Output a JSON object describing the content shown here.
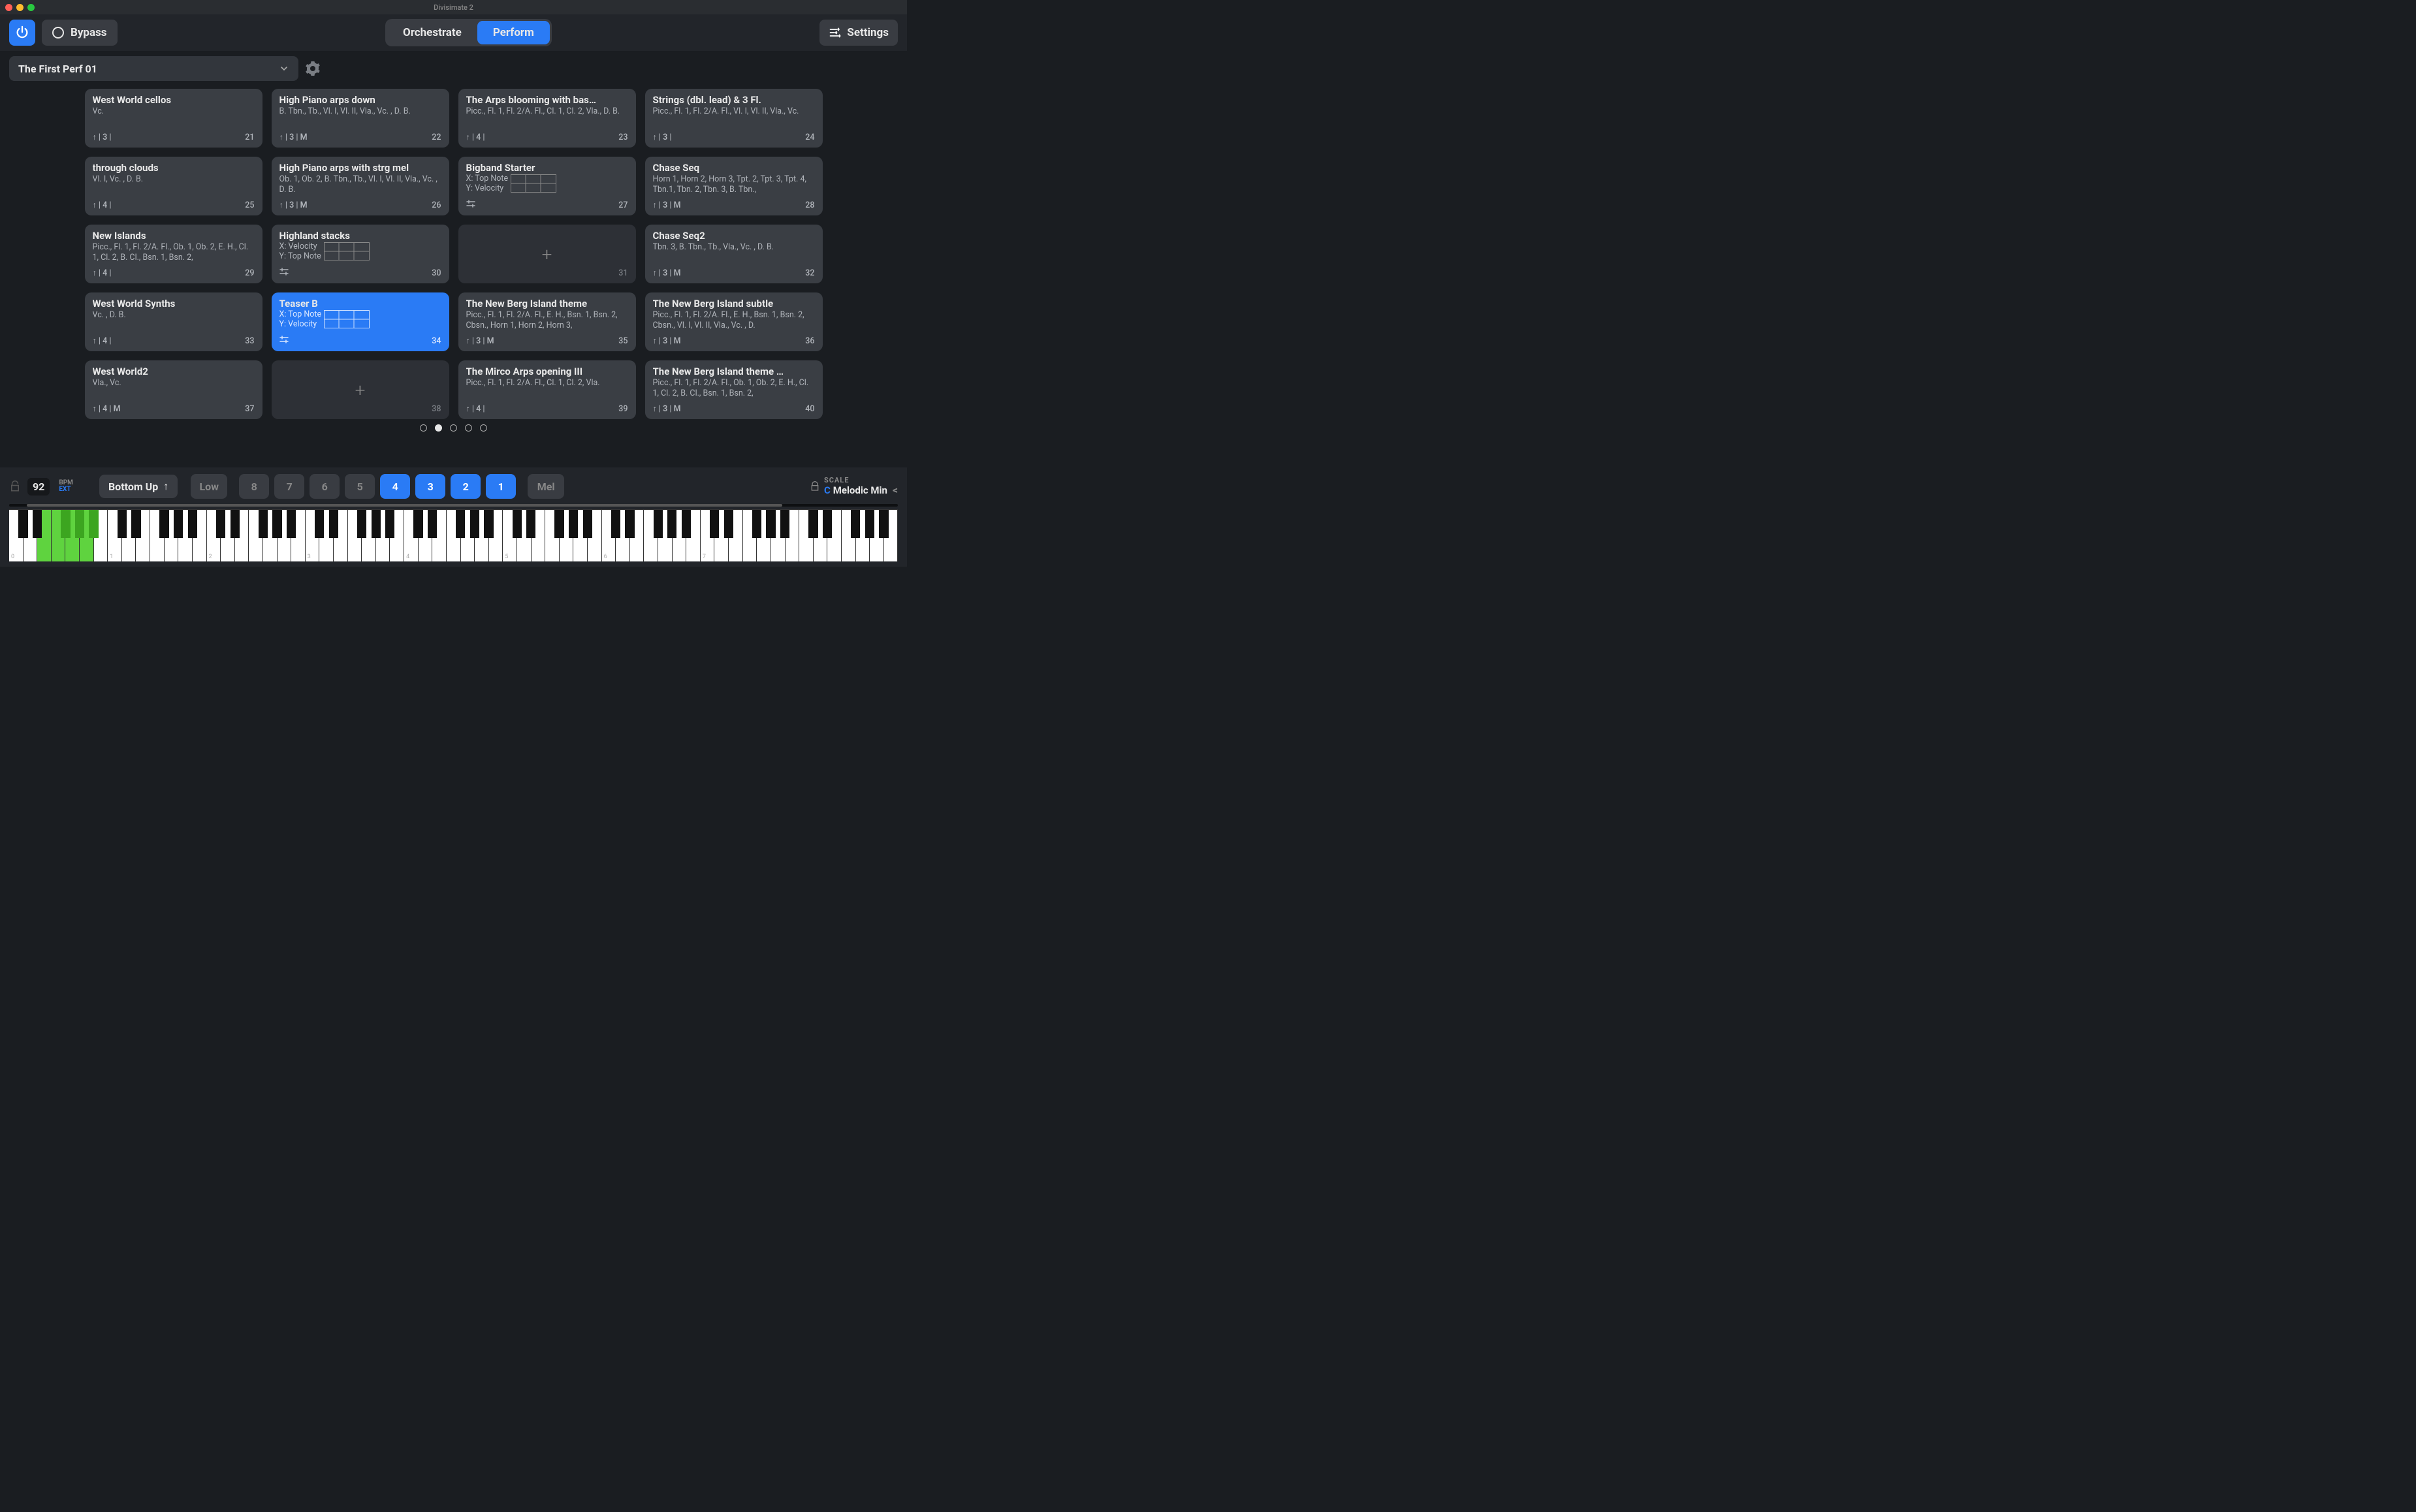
{
  "window": {
    "title": "Divisimate 2"
  },
  "toolbar": {
    "bypass_label": "Bypass",
    "mode_orchestrate": "Orchestrate",
    "mode_perform": "Perform",
    "settings_label": "Settings"
  },
  "preset": {
    "name": "The First Perf 01"
  },
  "cards": [
    {
      "title": "West World cellos",
      "sub": "Vc.",
      "info": "↑ | 3 |",
      "num": "21"
    },
    {
      "title": "High Piano arps down",
      "sub": "B. Tbn., Tb., Vl. I, Vl. II, Vla., Vc. , D. B.",
      "info": "↑ | 3 | M",
      "num": "22"
    },
    {
      "title": "The Arps blooming with bas…",
      "sub": "Picc., Fl. 1, Fl. 2/A. Fl., Cl. 1, Cl. 2, Vla., D. B.",
      "info": "↑ | 4 |",
      "num": "23"
    },
    {
      "title": "Strings (dbl. lead) & 3 Fl.",
      "sub": "Picc., Fl. 1, Fl. 2/A. Fl., Vl. I, Vl. II, Vla., Vc.",
      "info": "↑ | 3 |",
      "num": "24"
    },
    {
      "title": "through clouds",
      "sub": "Vl. I, Vc. , D. B.",
      "info": "↑ | 4 |",
      "num": "25"
    },
    {
      "title": "High Piano arps with strg mel",
      "sub": "Ob. 1, Ob. 2, B. Tbn., Tb., Vl. I, Vl. II, Vla., Vc. , D. B.",
      "info": "↑ | 3 | M",
      "num": "26"
    },
    {
      "title": "Bigband Starter",
      "xy": true,
      "x": "X: Top Note",
      "y": "Y: Velocity",
      "info": "mixer",
      "num": "27"
    },
    {
      "title": "Chase Seq",
      "sub": "Horn 1, Horn 2, Horn 3, Tpt. 2, Tpt. 3, Tpt. 4, Tbn.1, Tbn. 2, Tbn. 3, B. Tbn.,",
      "info": "↑ | 3 | M",
      "num": "28"
    },
    {
      "title": "New Islands",
      "sub": "Picc., Fl. 1, Fl. 2/A. Fl., Ob. 1, Ob. 2, E. H., Cl. 1, Cl. 2, B. Cl., Bsn. 1, Bsn. 2,",
      "info": "↑ | 4 |",
      "num": "29"
    },
    {
      "title": "Highland stacks",
      "xy": true,
      "x": "X: Velocity",
      "y": "Y: Top Note",
      "info": "mixer",
      "num": "30"
    },
    {
      "empty": true,
      "num": "31"
    },
    {
      "title": "Chase Seq2",
      "sub": "Tbn. 3, B. Tbn., Tb., Vla., Vc. , D. B.",
      "info": "↑ | 3 | M",
      "num": "32"
    },
    {
      "title": "West World Synths",
      "sub": "Vc. , D. B.",
      "info": "↑ | 4 |",
      "num": "33"
    },
    {
      "title": "Teaser B",
      "xy": true,
      "selected": true,
      "x": "X: Top Note",
      "y": "Y: Velocity",
      "info": "mixer",
      "num": "34"
    },
    {
      "title": "The New Berg Island theme",
      "sub": "Picc., Fl. 1, Fl. 2/A. Fl., E. H., Bsn. 1, Bsn. 2, Cbsn., Horn 1, Horn 2, Horn 3,",
      "info": "↑ | 3 | M",
      "num": "35"
    },
    {
      "title": "The New Berg Island subtle",
      "sub": "Picc., Fl. 1, Fl. 2/A. Fl., E. H., Bsn. 1, Bsn. 2, Cbsn., Vl. I, Vl. II, Vla., Vc. , D.",
      "info": "↑ | 3 | M",
      "num": "36"
    },
    {
      "title": "West World2",
      "sub": "Vla., Vc.",
      "info": "↑ | 4 | M",
      "num": "37"
    },
    {
      "empty": true,
      "num": "38"
    },
    {
      "title": "The Mirco Arps opening III",
      "sub": "Picc., Fl. 1, Fl. 2/A. Fl., Cl. 1, Cl. 2, Vla.",
      "info": "↑ | 4 |",
      "num": "39"
    },
    {
      "title": "The New Berg Island theme …",
      "sub": "Picc., Fl. 1, Fl. 2/A. Fl., Ob. 1, Ob. 2, E. H., Cl. 1, Cl. 2, B. Cl., Bsn. 1, Bsn. 2,",
      "info": "↑ | 3 | M",
      "num": "40"
    }
  ],
  "page_dots": {
    "count": 5,
    "active": 1
  },
  "transport": {
    "bpm": "92",
    "bpm_label": "BPM",
    "ext_label": "EXT",
    "direction": "Bottom Up",
    "low_label": "Low",
    "mel_label": "Mel",
    "voices": [
      "8",
      "7",
      "6",
      "5",
      "4",
      "3",
      "2",
      "1"
    ],
    "voices_active": [
      false,
      false,
      false,
      false,
      true,
      true,
      true,
      true
    ],
    "scale_label": "SCALE",
    "scale_key": "C",
    "scale_name": "Melodic Min"
  },
  "keyboard": {
    "octaves_visible": 9,
    "pressed_white_start": 2,
    "pressed_white_count": 4,
    "octave_labels": [
      "0",
      "1",
      "2",
      "3",
      "4",
      "5",
      "6",
      "7"
    ]
  }
}
